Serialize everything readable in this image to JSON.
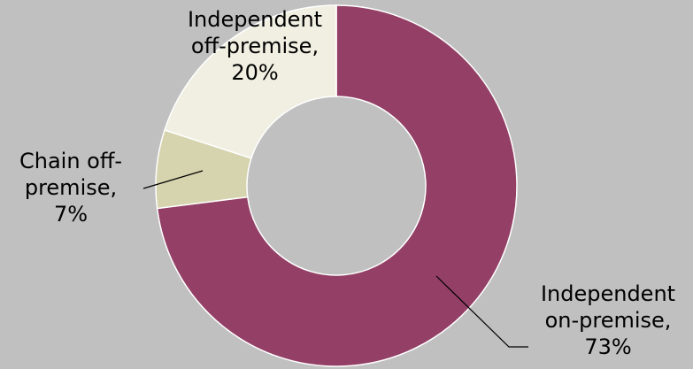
{
  "chart_data": {
    "type": "pie",
    "donut": true,
    "legend": "none",
    "slices": [
      {
        "label": "Independent on-premise",
        "value": 73,
        "value_label": "73%",
        "color": "#933f66",
        "label_lines": [
          "Independent",
          "on-premise,",
          "73%"
        ]
      },
      {
        "label": "Chain off-premise",
        "value": 7,
        "value_label": "7%",
        "color": "#d6d4ae",
        "label_lines": [
          "Chain off-",
          "premise,",
          "7%"
        ]
      },
      {
        "label": "Independent off-premise",
        "value": 20,
        "value_label": "20%",
        "color": "#f0efe2",
        "label_lines": [
          "Independent",
          "off-premise,",
          "20%"
        ]
      }
    ]
  }
}
